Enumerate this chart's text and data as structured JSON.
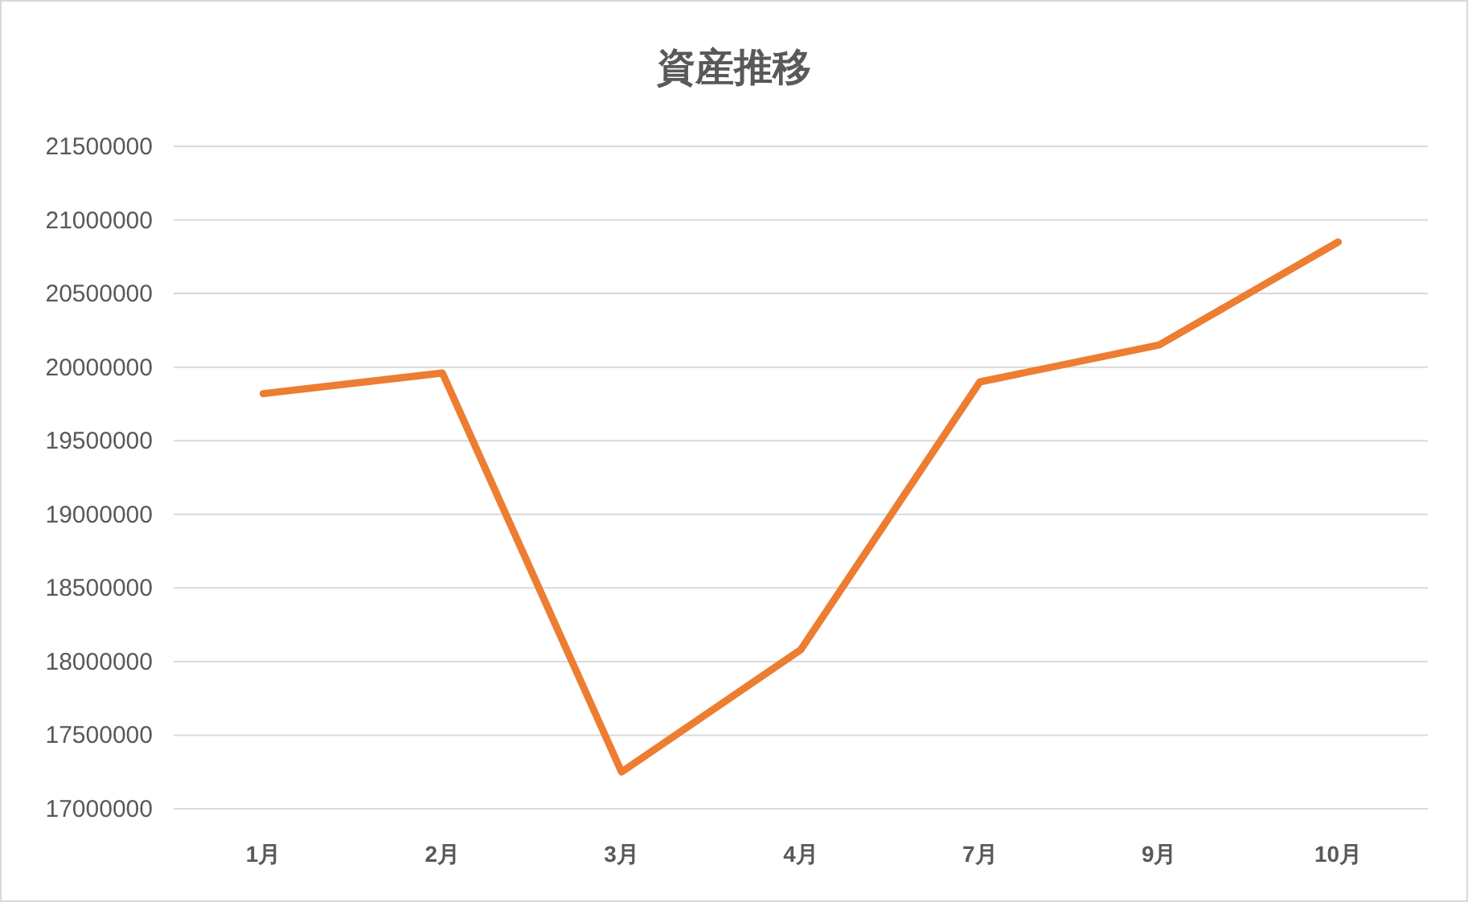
{
  "chart_data": {
    "type": "line",
    "title": "資産推移",
    "categories": [
      "1月",
      "2月",
      "3月",
      "4月",
      "7月",
      "9月",
      "10月"
    ],
    "series": [
      {
        "color": "#ed7d31",
        "values": [
          19820000,
          19960000,
          17250000,
          18080000,
          19900000,
          20150000,
          20850000
        ]
      }
    ],
    "ylim": [
      17000000,
      21500000
    ],
    "yticks": [
      17000000,
      17500000,
      18000000,
      18500000,
      19000000,
      19500000,
      20000000,
      20500000,
      21000000,
      21500000
    ],
    "grid": "y",
    "marker": "none",
    "line_style": "solid"
  }
}
